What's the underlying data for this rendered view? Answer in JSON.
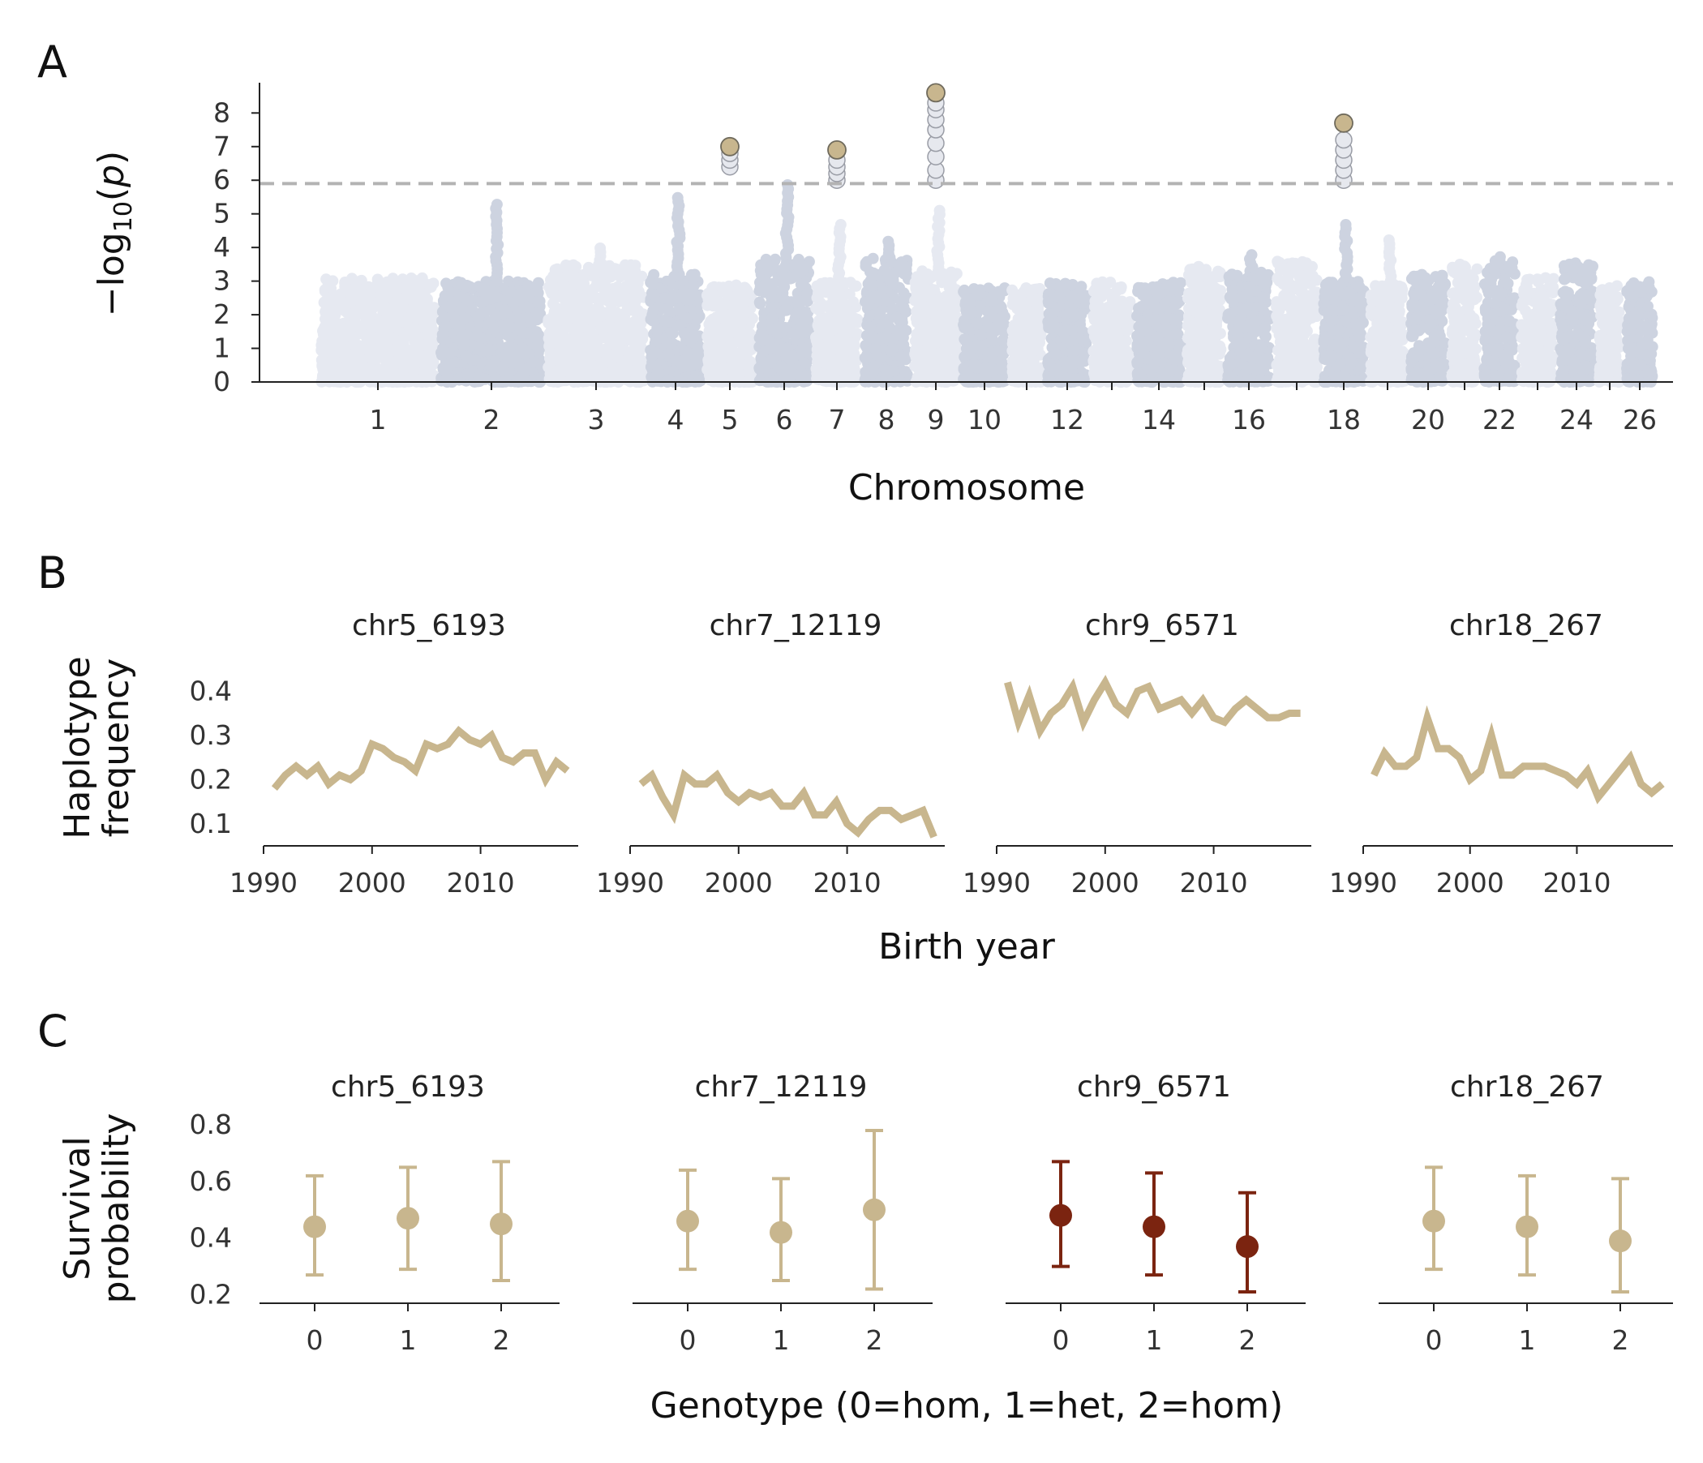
{
  "panels": {
    "A": "A",
    "B": "B",
    "C": "C"
  },
  "colors": {
    "highlight": "#c8b68e",
    "significant_fill": "#e6e8ee",
    "significant_stroke": "#9a9da6",
    "chrom_light": "#e6e9f1",
    "chrom_dark": "#cdd3e0",
    "threshold": "#b3b3b3",
    "line_b": "#c8b68e",
    "survival_normal": "#c8b68e",
    "survival_highlight": "#7b2410"
  },
  "chart_data": [
    {
      "id": "manhattan",
      "type": "scatter",
      "title": "",
      "xlabel": "Chromosome",
      "ylabel_main": "−log",
      "ylabel_sub": "10",
      "ylabel_paren_open": "(",
      "ylabel_p": "p",
      "ylabel_paren_close": ")",
      "ylim": [
        0,
        8.9
      ],
      "yticks": [
        0,
        1,
        2,
        3,
        4,
        5,
        6,
        7,
        8
      ],
      "threshold": 5.9,
      "chromosome_ticks": [
        "1",
        "2",
        "3",
        "4",
        "5",
        "6",
        "7",
        "8",
        "9",
        "10",
        "12",
        "14",
        "16",
        "18",
        "20",
        "22",
        "24",
        "26"
      ],
      "chromosomes": [
        {
          "n": 1,
          "background_max": 3.1
        },
        {
          "n": 2,
          "background_max": 3.0,
          "peak": 5.4
        },
        {
          "n": 3,
          "background_max": 3.5,
          "peak": 4.1
        },
        {
          "n": 4,
          "background_max": 3.2,
          "peak": 5.6
        },
        {
          "n": 5,
          "background_max": 2.9,
          "hits": [
            6.4,
            6.6,
            6.8
          ],
          "top": 7.0
        },
        {
          "n": 6,
          "background_max": 3.7,
          "peak": 5.9
        },
        {
          "n": 7,
          "background_max": 3.0,
          "peak": 4.8,
          "hits": [
            6.0,
            6.2,
            6.4,
            6.6
          ],
          "top": 6.9
        },
        {
          "n": 8,
          "background_max": 3.7,
          "peak": 4.3
        },
        {
          "n": 9,
          "background_max": 3.3,
          "peak": 5.2,
          "hits": [
            6.0,
            6.3,
            6.7,
            7.1,
            7.5,
            7.8,
            8.1,
            8.3
          ],
          "top": 8.6
        },
        {
          "n": 10,
          "background_max": 2.8
        },
        {
          "n": 11,
          "background_max": 2.8
        },
        {
          "n": 12,
          "background_max": 3.0
        },
        {
          "n": 13,
          "background_max": 3.0
        },
        {
          "n": 14,
          "background_max": 3.0
        },
        {
          "n": 15,
          "background_max": 3.5
        },
        {
          "n": 16,
          "background_max": 3.3,
          "peak": 3.9
        },
        {
          "n": 17,
          "background_max": 3.6
        },
        {
          "n": 18,
          "background_max": 3.0,
          "peak": 4.7,
          "hits": [
            6.0,
            6.3,
            6.6,
            6.9,
            7.2
          ],
          "top": 7.7
        },
        {
          "n": 19,
          "background_max": 2.9,
          "peak": 4.3
        },
        {
          "n": 20,
          "background_max": 3.2
        },
        {
          "n": 21,
          "background_max": 3.5
        },
        {
          "n": 22,
          "background_max": 3.6,
          "peak": 3.8
        },
        {
          "n": 23,
          "background_max": 3.1
        },
        {
          "n": 24,
          "background_max": 3.6
        },
        {
          "n": 25,
          "background_max": 2.9
        },
        {
          "n": 26,
          "background_max": 3.0
        }
      ]
    },
    {
      "id": "frequency",
      "type": "line",
      "xlabel": "Birth year",
      "ylabel_line1": "Haplotype",
      "ylabel_line2": "frequency",
      "ylim": [
        0.05,
        0.45
      ],
      "yticks": [
        0.1,
        0.2,
        0.3,
        0.4
      ],
      "ytick_labels": [
        "0.1",
        "0.2",
        "0.3",
        "0.4"
      ],
      "xlim": [
        1990,
        2019
      ],
      "xticks": [
        1990,
        2000,
        2010
      ],
      "xtick_labels": [
        "1990",
        "2000",
        "2010"
      ],
      "x": [
        1991,
        1992,
        1993,
        1994,
        1995,
        1996,
        1997,
        1998,
        1999,
        2000,
        2001,
        2002,
        2003,
        2004,
        2005,
        2006,
        2007,
        2008,
        2009,
        2010,
        2011,
        2012,
        2013,
        2014,
        2015,
        2016,
        2017,
        2018
      ],
      "series": [
        {
          "name": "chr5_6193",
          "values": [
            0.18,
            0.21,
            0.23,
            0.21,
            0.23,
            0.19,
            0.21,
            0.2,
            0.22,
            0.28,
            0.27,
            0.25,
            0.24,
            0.22,
            0.28,
            0.27,
            0.28,
            0.31,
            0.29,
            0.28,
            0.3,
            0.25,
            0.24,
            0.26,
            0.26,
            0.2,
            0.24,
            0.22
          ]
        },
        {
          "name": "chr7_12119",
          "values": [
            0.19,
            0.21,
            0.16,
            0.12,
            0.21,
            0.19,
            0.19,
            0.21,
            0.17,
            0.15,
            0.17,
            0.16,
            0.17,
            0.14,
            0.14,
            0.17,
            0.12,
            0.12,
            0.15,
            0.1,
            0.08,
            0.11,
            0.13,
            0.13,
            0.11,
            0.12,
            0.13,
            0.07
          ]
        },
        {
          "name": "chr9_6571",
          "values": [
            0.42,
            0.33,
            0.39,
            0.31,
            0.35,
            0.37,
            0.41,
            0.33,
            0.38,
            0.42,
            0.37,
            0.35,
            0.4,
            0.41,
            0.36,
            0.37,
            0.38,
            0.35,
            0.38,
            0.34,
            0.33,
            0.36,
            0.38,
            0.36,
            0.34,
            0.34,
            0.35,
            0.35
          ]
        },
        {
          "name": "chr18_267",
          "values": [
            0.21,
            0.26,
            0.23,
            0.23,
            0.25,
            0.34,
            0.27,
            0.27,
            0.25,
            0.2,
            0.22,
            0.3,
            0.21,
            0.21,
            0.23,
            0.23,
            0.23,
            0.22,
            0.21,
            0.19,
            0.22,
            0.16,
            0.19,
            0.22,
            0.25,
            0.19,
            0.17,
            0.19
          ]
        }
      ]
    },
    {
      "id": "survival",
      "type": "scatter",
      "subtype": "errorbar",
      "xlabel": "Genotype (0=hom, 1=het, 2=hom)",
      "ylabel_line1": "Survival",
      "ylabel_line2": "probability",
      "ylim": [
        0.17,
        0.82
      ],
      "yticks": [
        0.2,
        0.4,
        0.6,
        0.8
      ],
      "ytick_labels": [
        "0.2",
        "0.4",
        "0.6",
        "0.8"
      ],
      "categories": [
        "0",
        "1",
        "2"
      ],
      "series": [
        {
          "name": "chr5_6193",
          "highlight": false,
          "values": [
            0.44,
            0.47,
            0.45
          ],
          "lower": [
            0.27,
            0.29,
            0.25
          ],
          "upper": [
            0.62,
            0.65,
            0.67
          ]
        },
        {
          "name": "chr7_12119",
          "highlight": false,
          "values": [
            0.46,
            0.42,
            0.5
          ],
          "lower": [
            0.29,
            0.25,
            0.22
          ],
          "upper": [
            0.64,
            0.61,
            0.78
          ]
        },
        {
          "name": "chr9_6571",
          "highlight": true,
          "values": [
            0.48,
            0.44,
            0.37
          ],
          "lower": [
            0.3,
            0.27,
            0.21
          ],
          "upper": [
            0.67,
            0.63,
            0.56
          ]
        },
        {
          "name": "chr18_267",
          "highlight": false,
          "values": [
            0.46,
            0.44,
            0.39
          ],
          "lower": [
            0.29,
            0.27,
            0.21
          ],
          "upper": [
            0.65,
            0.62,
            0.61
          ]
        }
      ]
    }
  ]
}
